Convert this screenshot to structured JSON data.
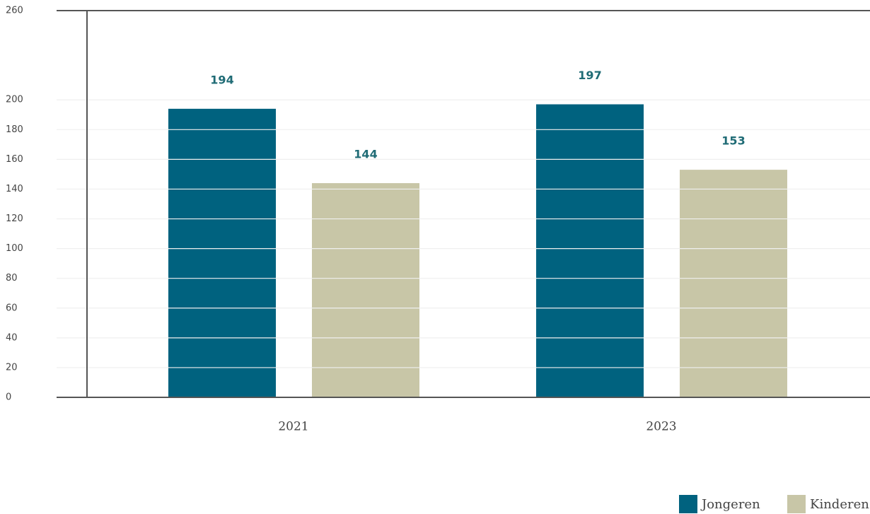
{
  "chart_data": {
    "type": "bar",
    "categories": [
      "2021",
      "2023"
    ],
    "series": [
      {
        "name": "Jongeren",
        "color": "#00627f",
        "values": [
          194,
          197
        ]
      },
      {
        "name": "Kinderen",
        "color": "#c8c6a7",
        "values": [
          144,
          153
        ]
      }
    ],
    "ylim": [
      0,
      260
    ],
    "yticks": [
      0,
      20,
      40,
      60,
      80,
      100,
      120,
      140,
      160,
      180,
      200,
      260
    ],
    "grid": true,
    "legend": "bottom-right"
  }
}
